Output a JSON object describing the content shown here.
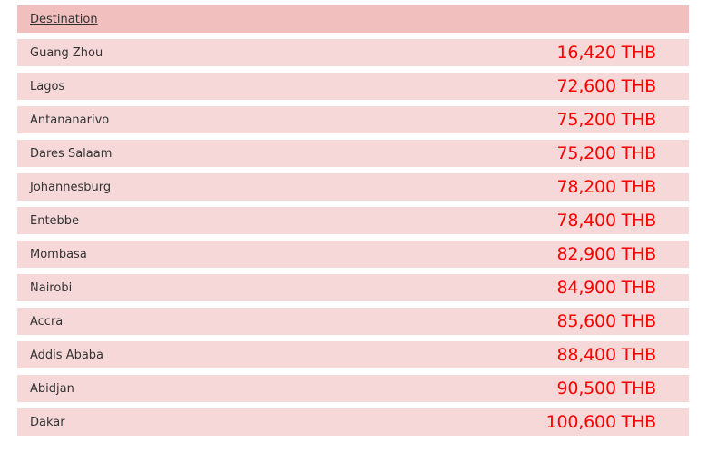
{
  "header": {
    "destination_label": "Destination"
  },
  "colors": {
    "header_bg": "#f2bfbf",
    "row_bg": "#f6d8d9",
    "price": "#ff0000"
  },
  "rows": [
    {
      "destination": "Guang Zhou",
      "price": "16,420 THB"
    },
    {
      "destination": "Lagos",
      "price": "72,600 THB"
    },
    {
      "destination": "Antananarivo",
      "price": "75,200 THB"
    },
    {
      "destination": "Dares Salaam",
      "price": "75,200 THB"
    },
    {
      "destination": "Johannesburg",
      "price": "78,200 THB"
    },
    {
      "destination": "Entebbe",
      "price": "78,400 THB"
    },
    {
      "destination": "Mombasa",
      "price": "82,900 THB"
    },
    {
      "destination": "Nairobi",
      "price": "84,900 THB"
    },
    {
      "destination": "Accra",
      "price": "85,600 THB"
    },
    {
      "destination": "Addis Ababa",
      "price": "88,400 THB"
    },
    {
      "destination": "Abidjan",
      "price": "90,500 THB"
    },
    {
      "destination": "Dakar",
      "price": "100,600 THB"
    }
  ]
}
